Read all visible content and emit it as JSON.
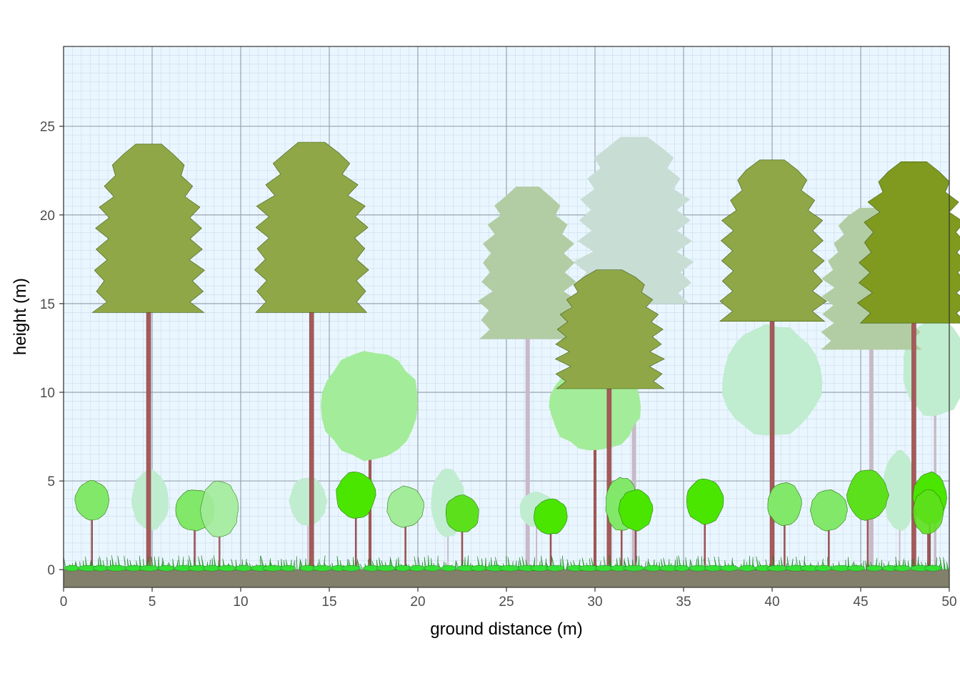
{
  "chart_data": {
    "type": "scatter",
    "title": "",
    "xlabel": "ground distance (m)",
    "ylabel": "height (m)",
    "xlim": [
      0,
      50
    ],
    "ylim": [
      -1,
      29.5
    ],
    "x_ticks": [
      "0",
      "5",
      "10",
      "15",
      "20",
      "25",
      "30",
      "35",
      "40",
      "45",
      "50"
    ],
    "y_ticks": [
      "0",
      "5",
      "10",
      "15",
      "20",
      "25"
    ],
    "grid": true,
    "colors": {
      "panel_background": "#eaf6ff",
      "major_grid": "#98a3ad",
      "minor_grid": "#c9dbe8",
      "ground": "#82806a",
      "grass": "#2fd32f",
      "trunk": "#a65a5a",
      "conifer_front": "#8fa746",
      "conifer_dark": "#7f9a1f",
      "conifer_back": "#b2cca4",
      "conifer_far": "#c8ddd4",
      "broadleaf_light": "#a3ec9a",
      "broadleaf_pale": "#c0ecd0",
      "shrub": "#82e86a",
      "shrub_bright": "#4ae600"
    },
    "trees": [
      {
        "kind": "conifer",
        "x": 4.8,
        "trunk_height": 14.5,
        "crown_top": 24.0,
        "crown_width": 6.0,
        "color": "#8fa746",
        "opacity": 1
      },
      {
        "kind": "conifer",
        "x": 14.0,
        "trunk_height": 14.5,
        "crown_top": 24.1,
        "crown_width": 6.2,
        "color": "#8fa746",
        "opacity": 1
      },
      {
        "kind": "conifer",
        "x": 26.2,
        "trunk_height": 13.0,
        "crown_top": 21.6,
        "crown_width": 5.4,
        "color": "#b2cca4",
        "opacity": 1
      },
      {
        "kind": "conifer",
        "x": 32.2,
        "trunk_height": 15.0,
        "crown_top": 24.4,
        "crown_width": 6.4,
        "color": "#c8ddd4",
        "opacity": 1
      },
      {
        "kind": "conifer",
        "x": 30.8,
        "trunk_height": 10.2,
        "crown_top": 16.9,
        "crown_width": 6.0,
        "color": "#8fa746",
        "opacity": 1
      },
      {
        "kind": "conifer",
        "x": 40.0,
        "trunk_height": 14.0,
        "crown_top": 23.1,
        "crown_width": 5.8,
        "color": "#8fa746",
        "opacity": 1
      },
      {
        "kind": "conifer",
        "x": 45.6,
        "trunk_height": 12.4,
        "crown_top": 20.4,
        "crown_width": 5.5,
        "color": "#b2cca4",
        "opacity": 1
      },
      {
        "kind": "conifer",
        "x": 48.0,
        "trunk_height": 13.9,
        "crown_top": 23.0,
        "crown_width": 6.0,
        "color": "#7f9a1f",
        "opacity": 1
      },
      {
        "kind": "broadleaf",
        "x": 17.3,
        "trunk_height": 6.2,
        "crown_top": 12.3,
        "crown_width": 5.6,
        "color": "#a3ec9a",
        "opacity": 1
      },
      {
        "kind": "broadleaf",
        "x": 30.0,
        "trunk_height": 6.7,
        "crown_top": 11.7,
        "crown_width": 5.1,
        "color": "#a3ec9a",
        "opacity": 1
      },
      {
        "kind": "broadleaf",
        "x": 40.0,
        "trunk_height": 7.5,
        "crown_top": 13.8,
        "crown_width": 5.6,
        "color": "#c0ecd0",
        "opacity": 1
      },
      {
        "kind": "broadleaf",
        "x": 49.2,
        "trunk_height": 8.6,
        "crown_top": 14.1,
        "crown_width": 3.6,
        "color": "#c0ecd0",
        "opacity": 1
      },
      {
        "kind": "shrub",
        "x": 1.6,
        "trunk_height": 2.8,
        "crown_top": 5.0,
        "crown_width": 1.9,
        "color": "#82e86a",
        "opacity": 1
      },
      {
        "kind": "shrub",
        "x": 4.9,
        "trunk_height": 2.2,
        "crown_top": 5.6,
        "crown_width": 2.1,
        "color": "#c0ecd0",
        "opacity": 1
      },
      {
        "kind": "shrub",
        "x": 7.4,
        "trunk_height": 2.2,
        "crown_top": 4.5,
        "crown_width": 2.2,
        "color": "#82e86a",
        "opacity": 1
      },
      {
        "kind": "shrub",
        "x": 8.8,
        "trunk_height": 1.8,
        "crown_top": 5.0,
        "crown_width": 2.1,
        "color": "#a3ec9a",
        "opacity": 0.9
      },
      {
        "kind": "shrub",
        "x": 13.8,
        "trunk_height": 2.5,
        "crown_top": 5.2,
        "crown_width": 2.1,
        "color": "#c0ecd0",
        "opacity": 1
      },
      {
        "kind": "shrub",
        "x": 16.5,
        "trunk_height": 2.9,
        "crown_top": 5.5,
        "crown_width": 2.2,
        "color": "#4ae600",
        "opacity": 1
      },
      {
        "kind": "shrub",
        "x": 19.3,
        "trunk_height": 2.4,
        "crown_top": 4.7,
        "crown_width": 2.1,
        "color": "#a3ec9a",
        "opacity": 1
      },
      {
        "kind": "shrub",
        "x": 21.7,
        "trunk_height": 1.8,
        "crown_top": 5.7,
        "crown_width": 1.9,
        "color": "#c0ecd0",
        "opacity": 1
      },
      {
        "kind": "shrub",
        "x": 22.5,
        "trunk_height": 2.1,
        "crown_top": 4.2,
        "crown_width": 1.9,
        "color": "#5de01c",
        "opacity": 1
      },
      {
        "kind": "shrub",
        "x": 26.7,
        "trunk_height": 2.4,
        "crown_top": 4.4,
        "crown_width": 1.9,
        "color": "#c0ecd0",
        "opacity": 1
      },
      {
        "kind": "shrub",
        "x": 27.5,
        "trunk_height": 2.0,
        "crown_top": 4.0,
        "crown_width": 1.9,
        "color": "#4ae600",
        "opacity": 1
      },
      {
        "kind": "shrub",
        "x": 31.5,
        "trunk_height": 2.2,
        "crown_top": 5.2,
        "crown_width": 1.8,
        "color": "#82e86a",
        "opacity": 1
      },
      {
        "kind": "shrub",
        "x": 32.3,
        "trunk_height": 2.2,
        "crown_top": 4.5,
        "crown_width": 1.9,
        "color": "#4ae600",
        "opacity": 1
      },
      {
        "kind": "shrub",
        "x": 36.2,
        "trunk_height": 2.6,
        "crown_top": 5.1,
        "crown_width": 2.1,
        "color": "#4ae600",
        "opacity": 1
      },
      {
        "kind": "shrub",
        "x": 40.7,
        "trunk_height": 2.5,
        "crown_top": 4.9,
        "crown_width": 1.9,
        "color": "#82e86a",
        "opacity": 1
      },
      {
        "kind": "shrub",
        "x": 43.2,
        "trunk_height": 2.2,
        "crown_top": 4.5,
        "crown_width": 2.1,
        "color": "#82e86a",
        "opacity": 1
      },
      {
        "kind": "shrub",
        "x": 45.4,
        "trunk_height": 2.8,
        "crown_top": 5.6,
        "crown_width": 2.3,
        "color": "#5de01c",
        "opacity": 1
      },
      {
        "kind": "shrub",
        "x": 47.2,
        "trunk_height": 2.2,
        "crown_top": 6.7,
        "crown_width": 1.9,
        "color": "#c0ecd0",
        "opacity": 1
      },
      {
        "kind": "shrub",
        "x": 48.9,
        "trunk_height": 2.6,
        "crown_top": 5.5,
        "crown_width": 1.9,
        "color": "#4ae600",
        "opacity": 1
      },
      {
        "kind": "shrub",
        "x": 48.8,
        "trunk_height": 2.0,
        "crown_top": 4.5,
        "crown_width": 1.7,
        "color": "#5de01c",
        "opacity": 0.9
      }
    ]
  }
}
